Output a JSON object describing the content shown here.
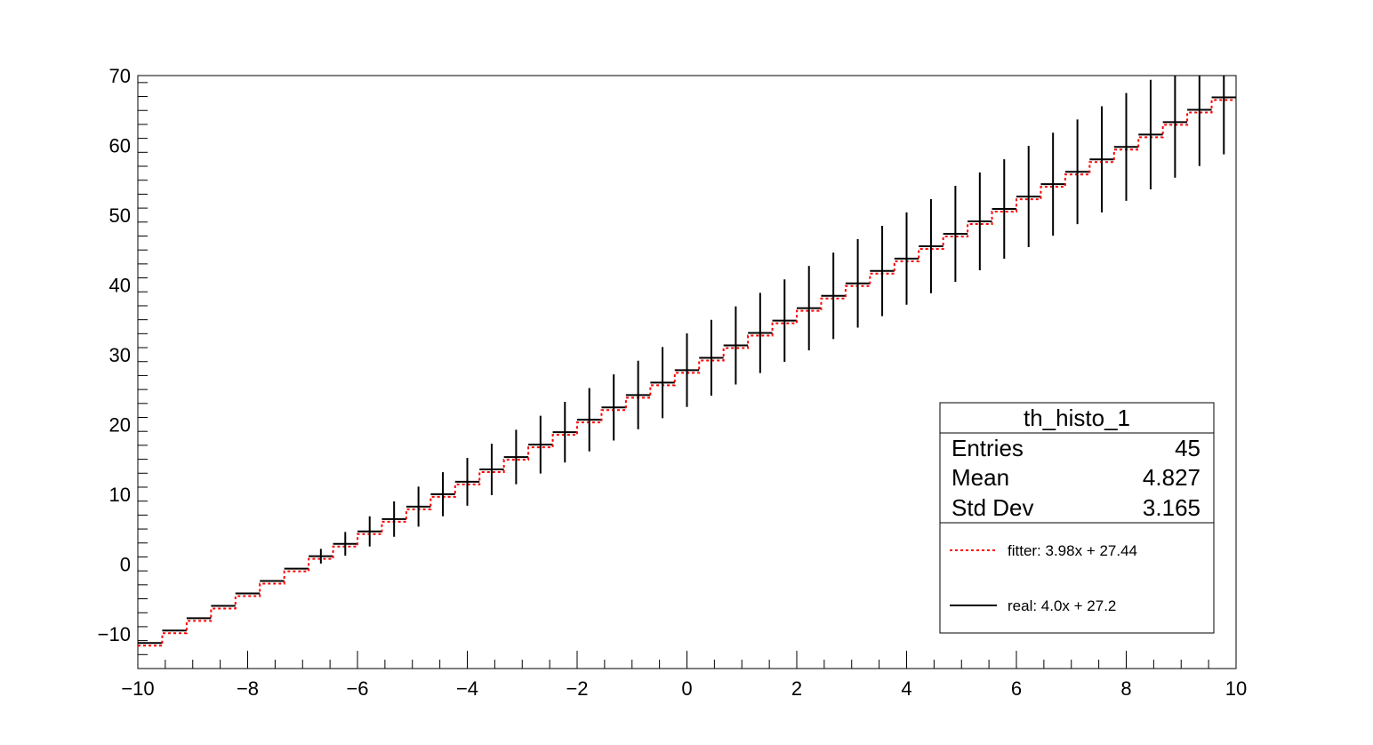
{
  "chart_data": {
    "type": "bar",
    "xlim": [
      -10,
      10
    ],
    "ylim": [
      -15,
      70
    ],
    "x_ticks": [
      -10,
      -8,
      -6,
      -4,
      -2,
      0,
      2,
      4,
      6,
      8,
      10
    ],
    "x_tick_labels": [
      "−10",
      "−8",
      "−6",
      "−4",
      "−2",
      "0",
      "2",
      "4",
      "6",
      "8",
      "10"
    ],
    "y_ticks": [
      -10,
      0,
      10,
      20,
      30,
      40,
      50,
      60,
      70
    ],
    "y_tick_labels": [
      "−10",
      "0",
      "10",
      "20",
      "30",
      "40",
      "50",
      "60",
      "70"
    ],
    "grid": false,
    "bin_edges_start": -10,
    "bin_width": 0.444444,
    "n_bins": 45,
    "series": [
      {
        "values": [
          -11.34,
          -9.56,
          -7.79,
          -6.01,
          -4.23,
          -2.45,
          -0.68,
          1.1,
          2.88,
          4.66,
          6.43,
          8.21,
          9.99,
          11.77,
          13.54,
          15.32,
          17.1,
          18.88,
          20.66,
          22.43,
          24.21,
          25.99,
          27.77,
          29.54,
          31.32,
          33.1,
          34.88,
          36.66,
          38.43,
          40.21,
          41.99,
          43.77,
          45.54,
          47.32,
          49.1,
          50.88,
          52.66,
          54.43,
          56.21,
          57.99,
          59.77,
          61.54,
          63.32,
          65.1,
          66.88
        ],
        "errors": [
          0,
          0,
          0,
          0,
          0,
          0,
          0,
          1.05,
          1.7,
          2.16,
          2.54,
          2.87,
          3.16,
          3.43,
          3.68,
          3.91,
          4.14,
          4.35,
          4.54,
          4.74,
          4.92,
          5.1,
          5.27,
          5.44,
          5.6,
          5.75,
          5.91,
          6.06,
          6.2,
          6.34,
          6.48,
          6.62,
          6.75,
          6.88,
          7.01,
          7.13,
          7.26,
          7.38,
          7.5,
          7.62,
          7.73,
          7.85,
          7.96,
          8.07,
          8.18
        ]
      }
    ],
    "fit_line": {
      "slope": 3.98,
      "intercept": 27.44,
      "color": "#ff0000"
    },
    "real_line": {
      "slope": 4.0,
      "intercept": 27.2,
      "color": "#000000"
    },
    "stats_box": {
      "title": "th_histo_1",
      "rows": [
        {
          "label": "Entries",
          "value": "45"
        },
        {
          "label": "Mean",
          "value": "4.827"
        },
        {
          "label": "Std Dev",
          "value": "3.165"
        }
      ]
    },
    "legend": {
      "placement": "bottom-right",
      "entries": [
        {
          "label": "fitter: 3.98x + 27.44",
          "color": "#ff0000",
          "style": "dotted"
        },
        {
          "label": "real: 4.0x + 27.2",
          "color": "#000000",
          "style": "solid"
        }
      ]
    }
  }
}
